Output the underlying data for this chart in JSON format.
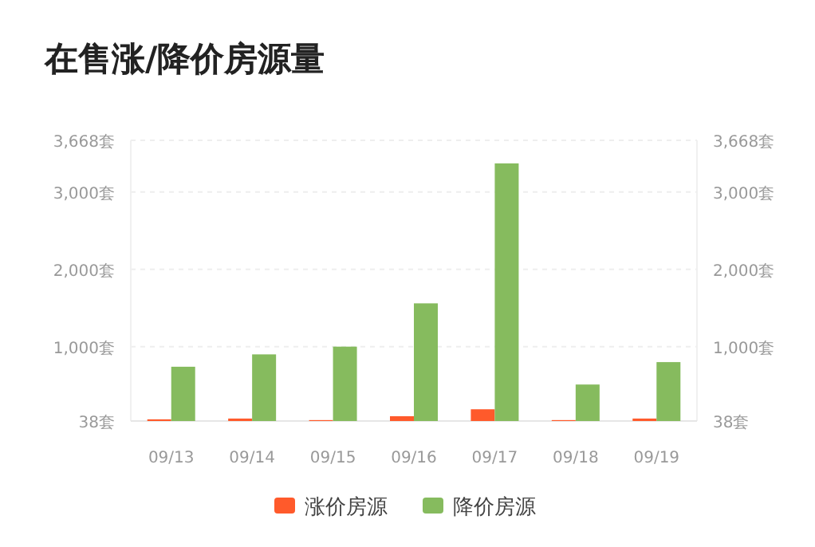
{
  "chart_data": {
    "type": "bar",
    "title": "在售涨/降价房源量",
    "categories": [
      "09/13",
      "09/14",
      "09/15",
      "09/16",
      "09/17",
      "09/18",
      "09/19"
    ],
    "series": [
      {
        "name": "涨价房源",
        "color": "#ff5a2b",
        "values": [
          60,
          70,
          50,
          100,
          190,
          50,
          70
        ]
      },
      {
        "name": "降价房源",
        "color": "#86bb5e",
        "values": [
          740,
          900,
          1000,
          1560,
          3370,
          510,
          800
        ]
      }
    ],
    "ylim": [
      38,
      3668
    ],
    "yticks": [
      {
        "value": 38,
        "label": "38套"
      },
      {
        "value": 1000,
        "label": "1,000套"
      },
      {
        "value": 2000,
        "label": "2,000套"
      },
      {
        "value": 3000,
        "label": "3,000套"
      },
      {
        "value": 3668,
        "label": "3,668套"
      }
    ],
    "y2lim": [
      38,
      3668
    ],
    "y2ticks": [
      {
        "value": 38,
        "label": "38套"
      },
      {
        "value": 1000,
        "label": "1,000套"
      },
      {
        "value": 2000,
        "label": "2,000套"
      },
      {
        "value": 3000,
        "label": "3,000套"
      },
      {
        "value": 3668,
        "label": "3,668套"
      }
    ],
    "grid": "y",
    "legend": "bottom"
  }
}
